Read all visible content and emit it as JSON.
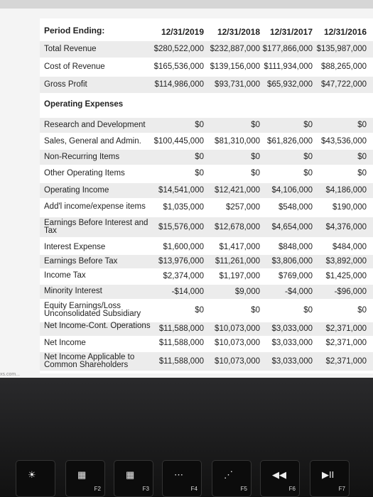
{
  "table": {
    "header": [
      "Period Ending:",
      "12/31/2019",
      "12/31/2018",
      "12/31/2017",
      "12/31/2016"
    ],
    "rows": [
      [
        "Total Revenue",
        "$280,522,000",
        "$232,887,000",
        "$177,866,000",
        "$135,987,000"
      ],
      [
        "Cost of Revenue",
        "$165,536,000",
        "$139,156,000",
        "$111,934,000",
        "$88,265,000"
      ],
      [
        "Gross Profit",
        "$114,986,000",
        "$93,731,000",
        "$65,932,000",
        "$47,722,000"
      ],
      [
        "Operating Expenses"
      ],
      [
        "Research and Development",
        "$0",
        "$0",
        "$0",
        "$0"
      ],
      [
        "Sales, General and Admin.",
        "$100,445,000",
        "$81,310,000",
        "$61,826,000",
        "$43,536,000"
      ],
      [
        "Non-Recurring Items",
        "$0",
        "$0",
        "$0",
        "$0"
      ],
      [
        "Other Operating Items",
        "$0",
        "$0",
        "$0",
        "$0"
      ],
      [
        "Operating Income",
        "$14,541,000",
        "$12,421,000",
        "$4,106,000",
        "$4,186,000"
      ],
      [
        "Add'l income/expense items",
        "$1,035,000",
        "$257,000",
        "$548,000",
        "$190,000"
      ],
      [
        "Earnings Before Interest and Tax",
        "$15,576,000",
        "$12,678,000",
        "$4,654,000",
        "$4,376,000"
      ],
      [
        "Interest Expense",
        "$1,600,000",
        "$1,417,000",
        "$848,000",
        "$484,000"
      ],
      [
        "Earnings Before Tax",
        "$13,976,000",
        "$11,261,000",
        "$3,806,000",
        "$3,892,000"
      ],
      [
        "Income Tax",
        "$2,374,000",
        "$1,197,000",
        "$769,000",
        "$1,425,000"
      ],
      [
        "Minority Interest",
        "-$14,000",
        "$9,000",
        "-$4,000",
        "-$96,000"
      ],
      [
        "Equity Earnings/Loss Unconsolidated Subsidiary",
        "$0",
        "$0",
        "$0",
        "$0"
      ],
      [
        "Net Income-Cont. Operations",
        "$11,588,000",
        "$10,073,000",
        "$3,033,000",
        "$2,371,000"
      ],
      [
        "Net Income",
        "$11,588,000",
        "$10,073,000",
        "$3,033,000",
        "$2,371,000"
      ],
      [
        "Net Income Applicable to Common Shareholders",
        "$11,588,000",
        "$10,073,000",
        "$3,033,000",
        "$2,371,000"
      ]
    ]
  },
  "url": "xs.com...",
  "keys": [
    "F2",
    "F3",
    "F4",
    "F5",
    "F6",
    "F7"
  ]
}
